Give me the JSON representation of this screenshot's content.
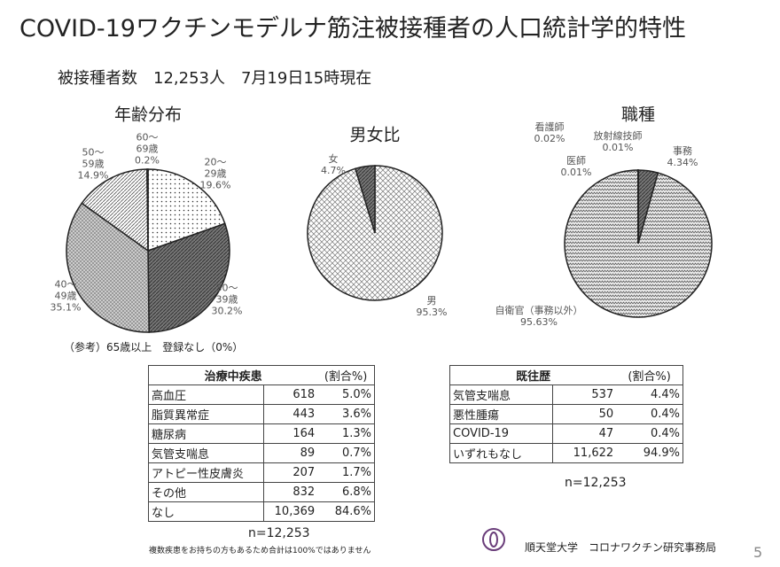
{
  "header": {
    "title": "COVID-19ワクチンモデルナ筋注被接種者の人口統計学的特性",
    "subtitle": "被接種者数　12,253人　7月19日15時現在"
  },
  "chart_data": [
    {
      "type": "pie",
      "title": "年齢分布",
      "categories": [
        "20～\n29歳",
        "30～\n39歳",
        "40～\n49歳",
        "50～\n59歳",
        "60～\n69歳"
      ],
      "values": [
        19.6,
        30.2,
        35.1,
        14.9,
        0.2
      ],
      "value_labels": [
        "19.6%",
        "30.2%",
        "35.1%",
        "14.9%",
        "0.2%"
      ]
    },
    {
      "type": "pie",
      "title": "男女比",
      "categories": [
        "男",
        "女"
      ],
      "values": [
        95.3,
        4.7
      ],
      "value_labels": [
        "95.3%",
        "4.7%"
      ]
    },
    {
      "type": "pie",
      "title": "職種",
      "categories": [
        "事務",
        "自衛官（事務以外）",
        "医師",
        "放射線技師",
        "看護師"
      ],
      "values": [
        4.34,
        95.63,
        0.01,
        0.01,
        0.02
      ],
      "value_labels": [
        "4.34%",
        "95.63%",
        "0.01%",
        "0.01%",
        "0.02%"
      ]
    }
  ],
  "note": "（参考）65歳以上　登録なし（0%）",
  "table1": {
    "header": [
      "治療中疾患",
      "(割合%)"
    ],
    "rows": [
      [
        "高血圧",
        "618",
        "5.0%"
      ],
      [
        "脂質異常症",
        "443",
        "3.6%"
      ],
      [
        "糖尿病",
        "164",
        "1.3%"
      ],
      [
        "気管支喘息",
        "89",
        "0.7%"
      ],
      [
        "アトピー性皮膚炎",
        "207",
        "1.7%"
      ],
      [
        "その他",
        "832",
        "6.8%"
      ],
      [
        "なし",
        "10,369",
        "84.6%"
      ]
    ],
    "n": "n=12,253",
    "footnote": "複数疾患をお持ちの方もあるため合計は100%ではありません"
  },
  "table2": {
    "header": [
      "既往歴",
      "(割合%)"
    ],
    "rows": [
      [
        "気管支喘息",
        "537",
        "4.4%"
      ],
      [
        "悪性腫瘍",
        "50",
        "0.4%"
      ],
      [
        "COVID-19",
        "47",
        "0.4%"
      ],
      [
        "いずれもなし",
        "11,622",
        "94.9%"
      ]
    ],
    "n": "n=12,253"
  },
  "footer": {
    "org": "順天堂大学　コロナワクチン研究事務局",
    "page": "5"
  }
}
